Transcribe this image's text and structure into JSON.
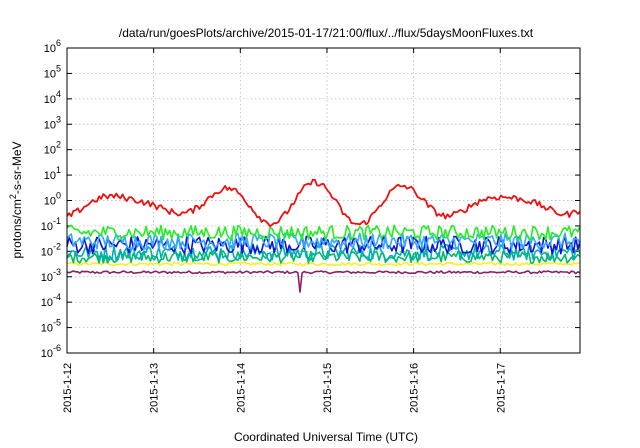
{
  "chart_data": {
    "type": "line",
    "title": "/data/run/goesPlots/archive/2015-01-17/21:00/flux/../flux/5daysMoonFluxes.txt",
    "xlabel": "Coordinated Universal Time (UTC)",
    "ylabel_html": {
      "base": "protons/cm",
      "sup": "2",
      "rest": "-s-sr-MeV"
    },
    "y_scale": "log",
    "ylim": [
      1e-06,
      1000000.0
    ],
    "y_tick_exponents": [
      -6,
      -5,
      -4,
      -3,
      -2,
      -1,
      0,
      1,
      2,
      3,
      4,
      5,
      6
    ],
    "x_tick_labels": [
      "2015-1-12",
      "2015-1-13",
      "2015-1-14",
      "2015-1-15",
      "2015-1-16",
      "2015-1-17"
    ],
    "xlim_days": [
      0,
      5.92
    ],
    "grid": true,
    "series": [
      {
        "color": "#ee1111",
        "level": 0.75,
        "var": 0.35,
        "type": "red"
      },
      {
        "color": "#22ee22",
        "level": 0.055,
        "var": 0.18,
        "type": "noisy"
      },
      {
        "color": "#33aaff",
        "level": 0.025,
        "var": 0.2,
        "type": "noisy"
      },
      {
        "color": "#1111dd",
        "level": 0.018,
        "var": 0.22,
        "type": "noisy"
      },
      {
        "color": "#00b0b0",
        "level": 0.009,
        "var": 0.2,
        "type": "noisy"
      },
      {
        "color": "#00bb66",
        "level": 0.006,
        "var": 0.15,
        "type": "noisy"
      },
      {
        "color": "#ffee22",
        "level": 0.0032,
        "var": 0.06,
        "type": "flat"
      },
      {
        "color": "#882266",
        "level": 0.0015,
        "var": 0.05,
        "type": "flat"
      }
    ]
  }
}
